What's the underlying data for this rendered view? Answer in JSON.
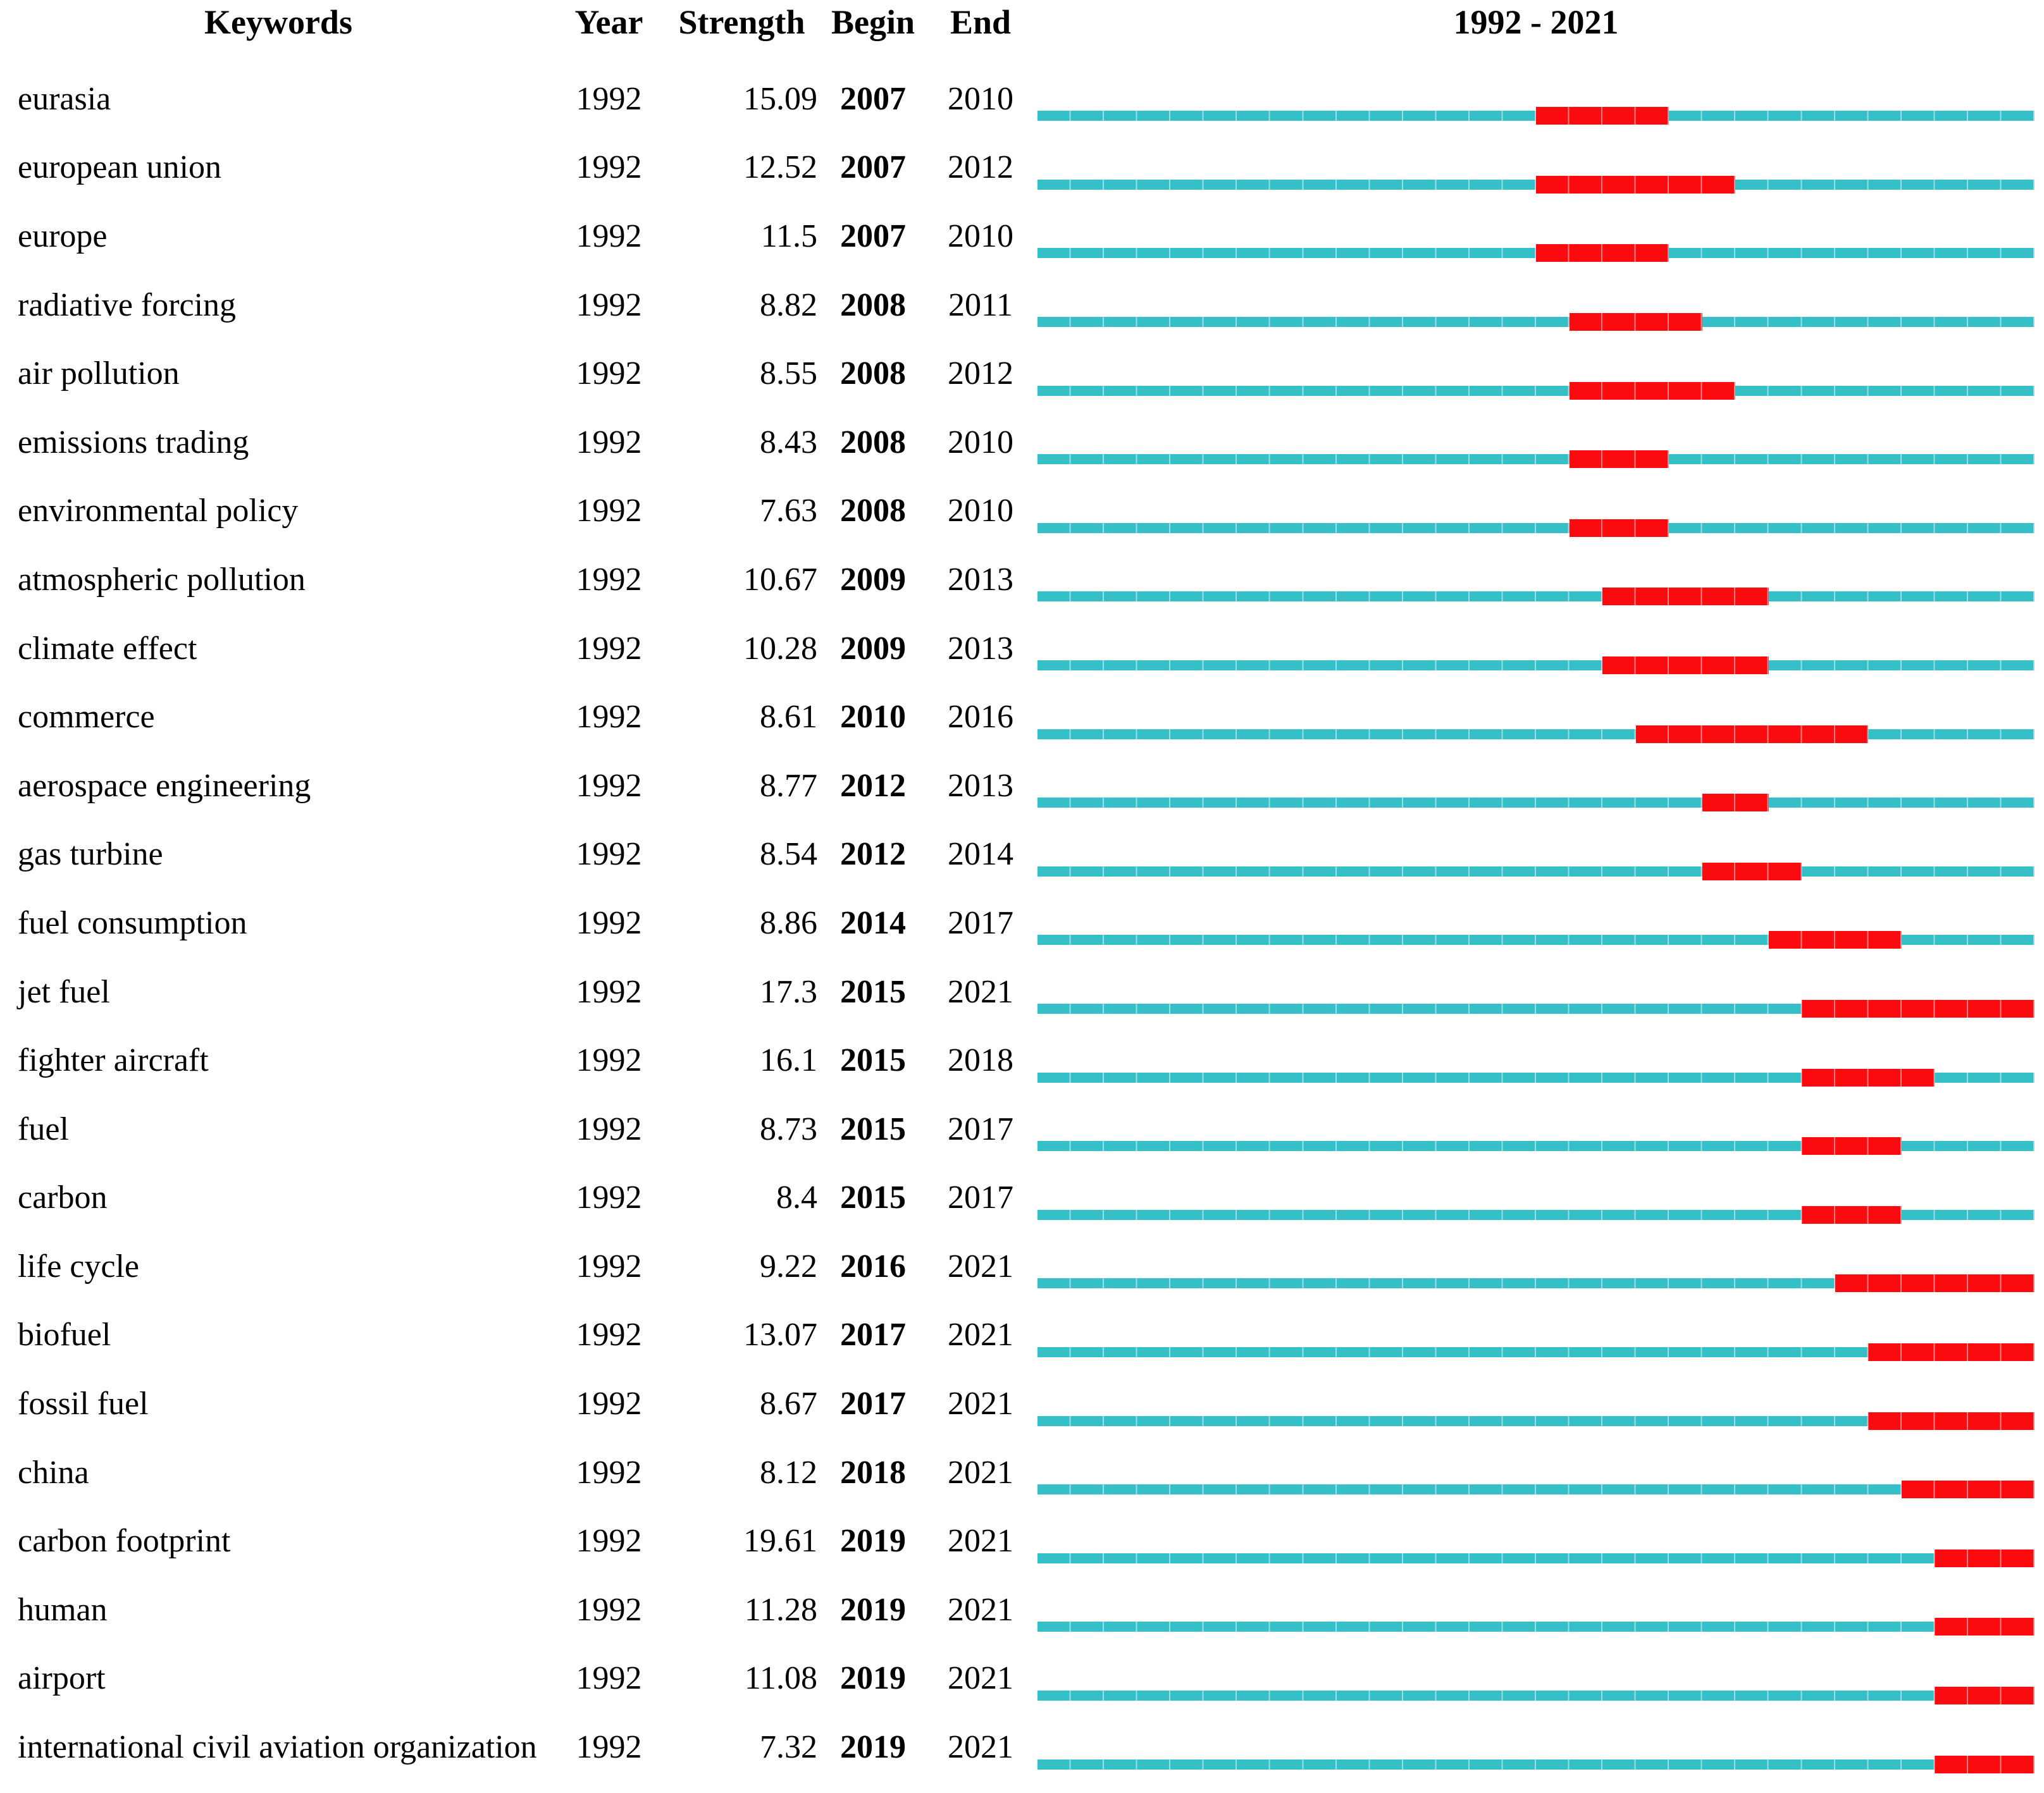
{
  "chart_data": {
    "type": "table",
    "title": "1992 - 2021",
    "columns": {
      "keywords": "Keywords",
      "year": "Year",
      "strength": "Strength",
      "begin": "Begin",
      "end": "End"
    },
    "timeline": {
      "start_year": 1992,
      "end_year": 2021
    },
    "colors": {
      "track": "#35BFC6",
      "burst": "#FB0A10",
      "tick": "rgba(255,255,255,0.5)",
      "text": "#000000"
    },
    "rows": [
      {
        "keyword": "eurasia",
        "year": "1992",
        "strength": "15.09",
        "begin": 2007,
        "end": 2010
      },
      {
        "keyword": "european union",
        "year": "1992",
        "strength": "12.52",
        "begin": 2007,
        "end": 2012
      },
      {
        "keyword": "europe",
        "year": "1992",
        "strength": "11.5",
        "begin": 2007,
        "end": 2010
      },
      {
        "keyword": "radiative forcing",
        "year": "1992",
        "strength": "8.82",
        "begin": 2008,
        "end": 2011
      },
      {
        "keyword": "air pollution",
        "year": "1992",
        "strength": "8.55",
        "begin": 2008,
        "end": 2012
      },
      {
        "keyword": "emissions trading",
        "year": "1992",
        "strength": "8.43",
        "begin": 2008,
        "end": 2010
      },
      {
        "keyword": "environmental policy",
        "year": "1992",
        "strength": "7.63",
        "begin": 2008,
        "end": 2010
      },
      {
        "keyword": "atmospheric pollution",
        "year": "1992",
        "strength": "10.67",
        "begin": 2009,
        "end": 2013
      },
      {
        "keyword": "climate effect",
        "year": "1992",
        "strength": "10.28",
        "begin": 2009,
        "end": 2013
      },
      {
        "keyword": "commerce",
        "year": "1992",
        "strength": "8.61",
        "begin": 2010,
        "end": 2016
      },
      {
        "keyword": "aerospace engineering",
        "year": "1992",
        "strength": "8.77",
        "begin": 2012,
        "end": 2013
      },
      {
        "keyword": "gas turbine",
        "year": "1992",
        "strength": "8.54",
        "begin": 2012,
        "end": 2014
      },
      {
        "keyword": "fuel consumption",
        "year": "1992",
        "strength": "8.86",
        "begin": 2014,
        "end": 2017
      },
      {
        "keyword": "jet fuel",
        "year": "1992",
        "strength": "17.3",
        "begin": 2015,
        "end": 2021
      },
      {
        "keyword": "fighter aircraft",
        "year": "1992",
        "strength": "16.1",
        "begin": 2015,
        "end": 2018
      },
      {
        "keyword": "fuel",
        "year": "1992",
        "strength": "8.73",
        "begin": 2015,
        "end": 2017
      },
      {
        "keyword": "carbon",
        "year": "1992",
        "strength": "8.4",
        "begin": 2015,
        "end": 2017
      },
      {
        "keyword": "life cycle",
        "year": "1992",
        "strength": "9.22",
        "begin": 2016,
        "end": 2021
      },
      {
        "keyword": "biofuel",
        "year": "1992",
        "strength": "13.07",
        "begin": 2017,
        "end": 2021
      },
      {
        "keyword": "fossil fuel",
        "year": "1992",
        "strength": "8.67",
        "begin": 2017,
        "end": 2021
      },
      {
        "keyword": "china",
        "year": "1992",
        "strength": "8.12",
        "begin": 2018,
        "end": 2021
      },
      {
        "keyword": "carbon footprint",
        "year": "1992",
        "strength": "19.61",
        "begin": 2019,
        "end": 2021
      },
      {
        "keyword": "human",
        "year": "1992",
        "strength": "11.28",
        "begin": 2019,
        "end": 2021
      },
      {
        "keyword": "airport",
        "year": "1992",
        "strength": "11.08",
        "begin": 2019,
        "end": 2021
      },
      {
        "keyword": "international civil aviation organization",
        "year": "1992",
        "strength": "7.32",
        "begin": 2019,
        "end": 2021
      }
    ]
  }
}
